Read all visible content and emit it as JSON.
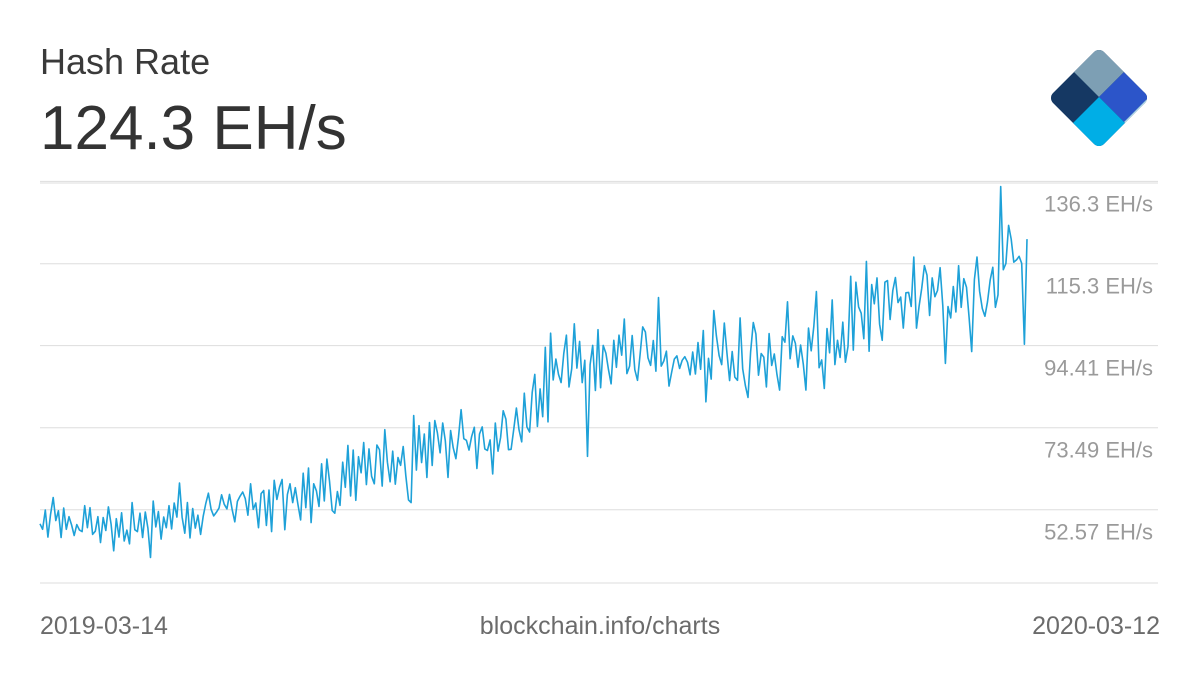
{
  "header": {
    "title": "Hash Rate",
    "current_value": "124.3 EH/s"
  },
  "footer": {
    "start_date": "2019-03-14",
    "source": "blockchain.info/charts",
    "end_date": "2020-03-12"
  },
  "logo": {
    "icon": "blockchain-logo-icon"
  },
  "colors": {
    "line": "#1ea1d8",
    "grid": "#dddddd",
    "tick_label": "#9a9a9a",
    "logo_dark": "#153863",
    "logo_grey": "#7d9fb4",
    "logo_blue": "#2c55c9",
    "logo_cyan": "#00aee6",
    "logo_light": "#acd5e8"
  },
  "chart_data": {
    "type": "line",
    "title": "Hash Rate",
    "xlabel": "",
    "ylabel": "",
    "x_range": [
      "2019-03-14",
      "2020-03-12"
    ],
    "ylim": [
      39.5,
      141.5
    ],
    "y_ticks": [
      52.57,
      73.49,
      94.41,
      115.3,
      136.3
    ],
    "y_tick_labels": [
      "52.57 EH/s",
      "73.49 EH/s",
      "94.41 EH/s",
      "115.3 EH/s",
      "136.3 EH/s"
    ],
    "grid": true,
    "series": [
      {
        "values": [
          54.6,
          53.2,
          58.1,
          51.2,
          56.9,
          61.3,
          55.4,
          57.9,
          51.1,
          58.6,
          53.2,
          56.4,
          54.3,
          51.6,
          54.4,
          53.0,
          52.6,
          59.2,
          53.6,
          58.7,
          51.9,
          52.7,
          56.4,
          49.8,
          56.2,
          52.9,
          58.9,
          54.5,
          47.7,
          55.9,
          51.2,
          57.4,
          50.2,
          53.0,
          49.5,
          60.0,
          53.1,
          52.6,
          57.3,
          51.1,
          57.6,
          53.5,
          46.0,
          60.4,
          53.8,
          57.7,
          50.7,
          56.3,
          53.6,
          59.2,
          53.3,
          59.9,
          56.3,
          65.0,
          56.3,
          52.2,
          60.0,
          51.0,
          58.5,
          53.5,
          56.8,
          51.9,
          56.5,
          59.8,
          62.4,
          58.3,
          56.6,
          57.5,
          58.6,
          62.0,
          59.6,
          58.4,
          62.1,
          58.3,
          55.1,
          60.3,
          61.6,
          62.7,
          61.0,
          56.8,
          64.8,
          58.3,
          59.9,
          53.6,
          62.3,
          63.1,
          54.2,
          63.2,
          52.6,
          65.7,
          60.8,
          63.9,
          65.9,
          53.1,
          62.1,
          64.8,
          60.0,
          63.8,
          59.6,
          55.6,
          67.5,
          58.7,
          68.8,
          54.9,
          64.8,
          63.0,
          59.0,
          69.9,
          60.4,
          71.1,
          65.5,
          58.0,
          57.3,
          62.8,
          59.3,
          70.3,
          63.9,
          74.6,
          61.7,
          73.4,
          60.6,
          71.7,
          67.6,
          75.3,
          64.6,
          73.7,
          66.7,
          64.8,
          74.7,
          73.5,
          64.2,
          78.6,
          70.3,
          65.3,
          73.1,
          64.7,
          71.5,
          69.5,
          74.3,
          66.9,
          60.7,
          60.0,
          82.2,
          68.3,
          79.6,
          70.2,
          77.5,
          66.4,
          80.4,
          69.5,
          80.9,
          77.8,
          72.7,
          80.3,
          75.8,
          66.4,
          78.4,
          74.0,
          71.2,
          76.7,
          83.7,
          76.3,
          75.9,
          73.4,
          76.8,
          79.2,
          68.7,
          77.5,
          79.3,
          73.7,
          73.3,
          76.0,
          67.3,
          80.3,
          73.1,
          76.6,
          83.4,
          81.3,
          73.5,
          73.6,
          78.8,
          84.1,
          78.6,
          75.5,
          87.9,
          79.3,
          78.0,
          88.1,
          92.7,
          79.4,
          89.0,
          81.9,
          99.6,
          80.6,
          103.2,
          91.3,
          96.6,
          92.7,
          90.6,
          98.1,
          102.7,
          89.5,
          94.1,
          105.6,
          94.3,
          101.1,
          90.6,
          96.3,
          71.8,
          95.2,
          100.1,
          88.6,
          104.1,
          89.3,
          100.1,
          98.1,
          93.9,
          90.3,
          101.4,
          94.5,
          102.7,
          97.6,
          106.8,
          92.9,
          94.8,
          102.6,
          93.9,
          91.2,
          97.8,
          104.8,
          103.5,
          96.9,
          95.0,
          101.3,
          93.5,
          112.3,
          94.8,
          96.1,
          98.6,
          89.7,
          93.3,
          96.6,
          97.4,
          94.2,
          96.3,
          97.2,
          95.8,
          92.6,
          98.4,
          92.8,
          100.8,
          94.0,
          103.9,
          85.7,
          96.8,
          91.5,
          109.0,
          102.5,
          97.5,
          95.2,
          105.8,
          98.0,
          91.1,
          98.5,
          92.0,
          91.2,
          107.1,
          94.1,
          89.8,
          86.8,
          98.4,
          105.9,
          103.0,
          92.5,
          98.0,
          97.1,
          89.5,
          103.1,
          95.0,
          97.9,
          92.6,
          88.7,
          102.3,
          100.9,
          111.2,
          96.7,
          102.5,
          100.6,
          94.5,
          100.2,
          95.3,
          88.7,
          104.5,
          98.7,
          104.9,
          113.8,
          94.4,
          96.4,
          89.1,
          104.4,
          98.2,
          111.7,
          95.2,
          101.4,
          97.0,
          106.0,
          95.8,
          99.8,
          117.7,
          98.9,
          116.2,
          109.9,
          108.3,
          101.8,
          121.5,
          98.6,
          115.6,
          110.7,
          117.3,
          105.5,
          101.4,
          116.2,
          116.6,
          106.7,
          114.1,
          117.4,
          111.0,
          112.4,
          104.5,
          113.5,
          113.6,
          110.0,
          122.6,
          104.5,
          110.1,
          114.6,
          120.4,
          118.0,
          107.7,
          117.3,
          112.5,
          114.1,
          119.9,
          110.2,
          95.5,
          110.0,
          107.1,
          115.1,
          108.6,
          120.4,
          109.8,
          117.1,
          114.9,
          107.2,
          98.5,
          116.9,
          122.6,
          113.9,
          109.5,
          107.5,
          111.2,
          116.8,
          120.0,
          109.8,
          113.0,
          140.6,
          119.4,
          121.0,
          130.7,
          127.2,
          121.3,
          121.9,
          122.8,
          121.0,
          100.4,
          127.2
        ]
      }
    ]
  }
}
